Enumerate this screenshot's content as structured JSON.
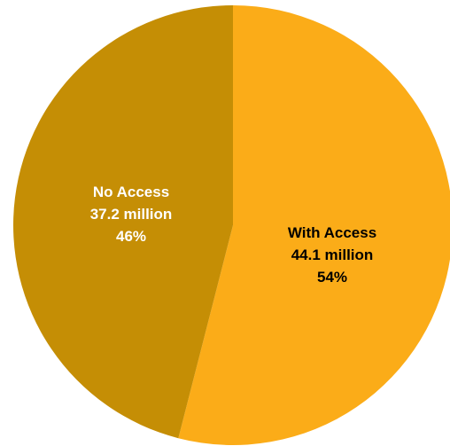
{
  "chart_data": {
    "type": "pie",
    "title": "",
    "start_angle_deg": 0,
    "direction": "clockwise",
    "slices": [
      {
        "label": "With Access",
        "value": 44.1,
        "value_text": "44.1 million",
        "percent": 54,
        "percent_text": "54%",
        "color": "#FBAC18",
        "label_color": "#000000"
      },
      {
        "label": "No Access",
        "value": 37.2,
        "value_text": "37.2 million",
        "percent": 46,
        "percent_text": "46%",
        "color": "#C58E05",
        "label_color": "#FFFFFF"
      }
    ],
    "legend": "none"
  }
}
